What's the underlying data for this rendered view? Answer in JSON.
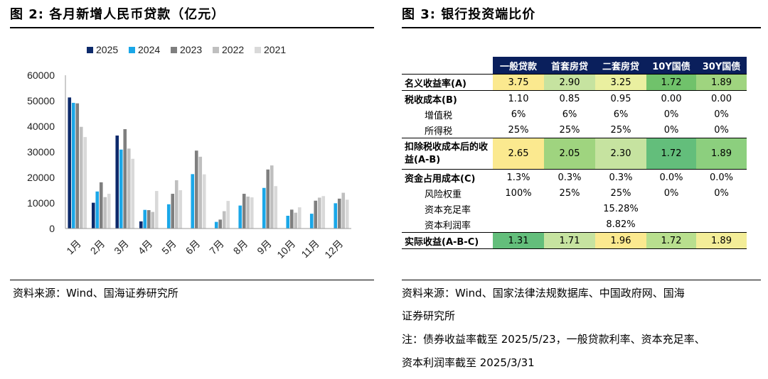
{
  "left": {
    "title": "图 2:  各月新增人民币贷款（亿元）",
    "source": "资料来源：Wind、国海证券研究所"
  },
  "right": {
    "title": "图 3:  银行投资端比价",
    "source_line1": "资料来源：Wind、国家法律法规数据库、中国政府网、国海",
    "source_line2": "证券研究所",
    "note_line1": "注：债券收益率截至 2025/5/23，一般贷款利率、资本充足率、",
    "note_line2": "资本利润率截至 2025/3/31"
  },
  "chart_data": {
    "type": "bar",
    "title": "各月新增人民币贷款（亿元）",
    "categories": [
      "1月",
      "2月",
      "3月",
      "4月",
      "5月",
      "6月",
      "7月",
      "8月",
      "9月",
      "10月",
      "11月",
      "12月"
    ],
    "ylim": [
      0,
      60000
    ],
    "yticks": [
      0,
      10000,
      20000,
      30000,
      40000,
      50000,
      60000
    ],
    "legend_position": "top",
    "grid": false,
    "series": [
      {
        "name": "2025",
        "color": "#0d2a6b",
        "values": [
          51300,
          10100,
          36400,
          2800,
          null,
          null,
          null,
          null,
          null,
          null,
          null,
          null
        ]
      },
      {
        "name": "2024",
        "color": "#1aa7e8",
        "values": [
          49200,
          14500,
          30900,
          7300,
          9500,
          21300,
          2600,
          9000,
          15900,
          5000,
          5800,
          9900
        ]
      },
      {
        "name": "2023",
        "color": "#7f7f7f",
        "values": [
          49000,
          18100,
          38900,
          7200,
          13600,
          30500,
          3500,
          13600,
          23100,
          7400,
          10900,
          11700
        ]
      },
      {
        "name": "2022",
        "color": "#bfbfbf",
        "values": [
          39800,
          12300,
          31300,
          6500,
          18900,
          28100,
          6800,
          12500,
          24700,
          6200,
          12100,
          14000
        ]
      },
      {
        "name": "2021",
        "color": "#d9d9d9",
        "values": [
          35800,
          13600,
          27300,
          14700,
          15000,
          21200,
          10800,
          12200,
          16600,
          8300,
          12700,
          11300
        ]
      }
    ]
  },
  "table": {
    "headers": [
      "",
      "一般贷款",
      "首套房贷",
      "二套房贷",
      "10Y国债",
      "30Y国债"
    ],
    "rows": [
      {
        "style": "boxed",
        "label": "名义收益率(A)",
        "cells": [
          "3.75",
          "2.90",
          "3.25",
          "1.72",
          "1.89"
        ],
        "colors": [
          "#fbe98f",
          "#c6e3a0",
          "#eaf0a0",
          "#70c26b",
          "#9fd47f"
        ]
      },
      {
        "style": "grp-top",
        "label": "税收成本(B)",
        "cells": [
          "1.10",
          "0.85",
          "0.95",
          "0.00",
          "0.00"
        ]
      },
      {
        "style": "sub",
        "label": "增值税",
        "cells": [
          "6%",
          "6%",
          "6%",
          "0%",
          "0%"
        ]
      },
      {
        "style": "sub",
        "label": "所得税",
        "cells": [
          "25%",
          "25%",
          "25%",
          "0%",
          "0%"
        ]
      },
      {
        "style": "boxed-tall",
        "label": "扣除税收成本后的收益(A-B)",
        "cells": [
          "2.65",
          "2.05",
          "2.30",
          "1.72",
          "1.89"
        ],
        "colors": [
          "#fbe98f",
          "#9fd47f",
          "#c6e3a0",
          "#63be7b",
          "#8ccf7e"
        ]
      },
      {
        "style": "grp-top",
        "label": "资金占用成本(C)",
        "cells": [
          "1.3%",
          "0.3%",
          "0.3%",
          "0.0%",
          "0.0%"
        ]
      },
      {
        "style": "sub",
        "label": "风险权重",
        "cells": [
          "100%",
          "25%",
          "25%",
          "0%",
          "0%"
        ]
      },
      {
        "style": "sub",
        "label": "资本充足率",
        "cells": [
          "",
          "",
          "15.28%",
          "",
          ""
        ]
      },
      {
        "style": "sub-last",
        "label": "资本利润率",
        "cells": [
          "",
          "",
          "8.82%",
          "",
          ""
        ]
      },
      {
        "style": "boxed",
        "label": "实际收益(A-B-C)",
        "cells": [
          "1.31",
          "1.71",
          "1.96",
          "1.72",
          "1.89"
        ],
        "colors": [
          "#63be7b",
          "#c6e3a0",
          "#fbe98f",
          "#b8df8e",
          "#f3ed98"
        ]
      }
    ]
  }
}
